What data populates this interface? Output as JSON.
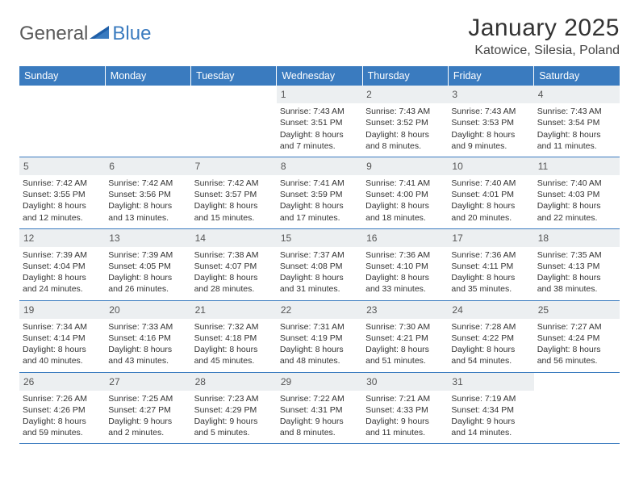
{
  "brand": {
    "name_a": "General",
    "name_b": "Blue"
  },
  "title": "January 2025",
  "location": "Katowice, Silesia, Poland",
  "colors": {
    "header_bg": "#3a7bbf",
    "header_text": "#ffffff",
    "daynum_bg": "#eceff1",
    "daynum_text": "#555555",
    "border": "#3a7bbf",
    "body_text": "#333333",
    "logo_gray": "#5a5a5a",
    "logo_blue": "#3a7bbf"
  },
  "weekdays": [
    "Sunday",
    "Monday",
    "Tuesday",
    "Wednesday",
    "Thursday",
    "Friday",
    "Saturday"
  ],
  "fonts": {
    "title_size_pt": 30,
    "location_size_pt": 16,
    "weekday_size_pt": 12.5,
    "cell_size_pt": 10.5,
    "daynum_size_pt": 12
  },
  "grid": {
    "start_weekday_index": 3,
    "days": [
      {
        "n": 1,
        "sunrise": "7:43 AM",
        "sunset": "3:51 PM",
        "daylight": "8 hours and 7 minutes."
      },
      {
        "n": 2,
        "sunrise": "7:43 AM",
        "sunset": "3:52 PM",
        "daylight": "8 hours and 8 minutes."
      },
      {
        "n": 3,
        "sunrise": "7:43 AM",
        "sunset": "3:53 PM",
        "daylight": "8 hours and 9 minutes."
      },
      {
        "n": 4,
        "sunrise": "7:43 AM",
        "sunset": "3:54 PM",
        "daylight": "8 hours and 11 minutes."
      },
      {
        "n": 5,
        "sunrise": "7:42 AM",
        "sunset": "3:55 PM",
        "daylight": "8 hours and 12 minutes."
      },
      {
        "n": 6,
        "sunrise": "7:42 AM",
        "sunset": "3:56 PM",
        "daylight": "8 hours and 13 minutes."
      },
      {
        "n": 7,
        "sunrise": "7:42 AM",
        "sunset": "3:57 PM",
        "daylight": "8 hours and 15 minutes."
      },
      {
        "n": 8,
        "sunrise": "7:41 AM",
        "sunset": "3:59 PM",
        "daylight": "8 hours and 17 minutes."
      },
      {
        "n": 9,
        "sunrise": "7:41 AM",
        "sunset": "4:00 PM",
        "daylight": "8 hours and 18 minutes."
      },
      {
        "n": 10,
        "sunrise": "7:40 AM",
        "sunset": "4:01 PM",
        "daylight": "8 hours and 20 minutes."
      },
      {
        "n": 11,
        "sunrise": "7:40 AM",
        "sunset": "4:03 PM",
        "daylight": "8 hours and 22 minutes."
      },
      {
        "n": 12,
        "sunrise": "7:39 AM",
        "sunset": "4:04 PM",
        "daylight": "8 hours and 24 minutes."
      },
      {
        "n": 13,
        "sunrise": "7:39 AM",
        "sunset": "4:05 PM",
        "daylight": "8 hours and 26 minutes."
      },
      {
        "n": 14,
        "sunrise": "7:38 AM",
        "sunset": "4:07 PM",
        "daylight": "8 hours and 28 minutes."
      },
      {
        "n": 15,
        "sunrise": "7:37 AM",
        "sunset": "4:08 PM",
        "daylight": "8 hours and 31 minutes."
      },
      {
        "n": 16,
        "sunrise": "7:36 AM",
        "sunset": "4:10 PM",
        "daylight": "8 hours and 33 minutes."
      },
      {
        "n": 17,
        "sunrise": "7:36 AM",
        "sunset": "4:11 PM",
        "daylight": "8 hours and 35 minutes."
      },
      {
        "n": 18,
        "sunrise": "7:35 AM",
        "sunset": "4:13 PM",
        "daylight": "8 hours and 38 minutes."
      },
      {
        "n": 19,
        "sunrise": "7:34 AM",
        "sunset": "4:14 PM",
        "daylight": "8 hours and 40 minutes."
      },
      {
        "n": 20,
        "sunrise": "7:33 AM",
        "sunset": "4:16 PM",
        "daylight": "8 hours and 43 minutes."
      },
      {
        "n": 21,
        "sunrise": "7:32 AM",
        "sunset": "4:18 PM",
        "daylight": "8 hours and 45 minutes."
      },
      {
        "n": 22,
        "sunrise": "7:31 AM",
        "sunset": "4:19 PM",
        "daylight": "8 hours and 48 minutes."
      },
      {
        "n": 23,
        "sunrise": "7:30 AM",
        "sunset": "4:21 PM",
        "daylight": "8 hours and 51 minutes."
      },
      {
        "n": 24,
        "sunrise": "7:28 AM",
        "sunset": "4:22 PM",
        "daylight": "8 hours and 54 minutes."
      },
      {
        "n": 25,
        "sunrise": "7:27 AM",
        "sunset": "4:24 PM",
        "daylight": "8 hours and 56 minutes."
      },
      {
        "n": 26,
        "sunrise": "7:26 AM",
        "sunset": "4:26 PM",
        "daylight": "8 hours and 59 minutes."
      },
      {
        "n": 27,
        "sunrise": "7:25 AM",
        "sunset": "4:27 PM",
        "daylight": "9 hours and 2 minutes."
      },
      {
        "n": 28,
        "sunrise": "7:23 AM",
        "sunset": "4:29 PM",
        "daylight": "9 hours and 5 minutes."
      },
      {
        "n": 29,
        "sunrise": "7:22 AM",
        "sunset": "4:31 PM",
        "daylight": "9 hours and 8 minutes."
      },
      {
        "n": 30,
        "sunrise": "7:21 AM",
        "sunset": "4:33 PM",
        "daylight": "9 hours and 11 minutes."
      },
      {
        "n": 31,
        "sunrise": "7:19 AM",
        "sunset": "4:34 PM",
        "daylight": "9 hours and 14 minutes."
      }
    ]
  },
  "labels": {
    "sunrise": "Sunrise:",
    "sunset": "Sunset:",
    "daylight": "Daylight:"
  }
}
